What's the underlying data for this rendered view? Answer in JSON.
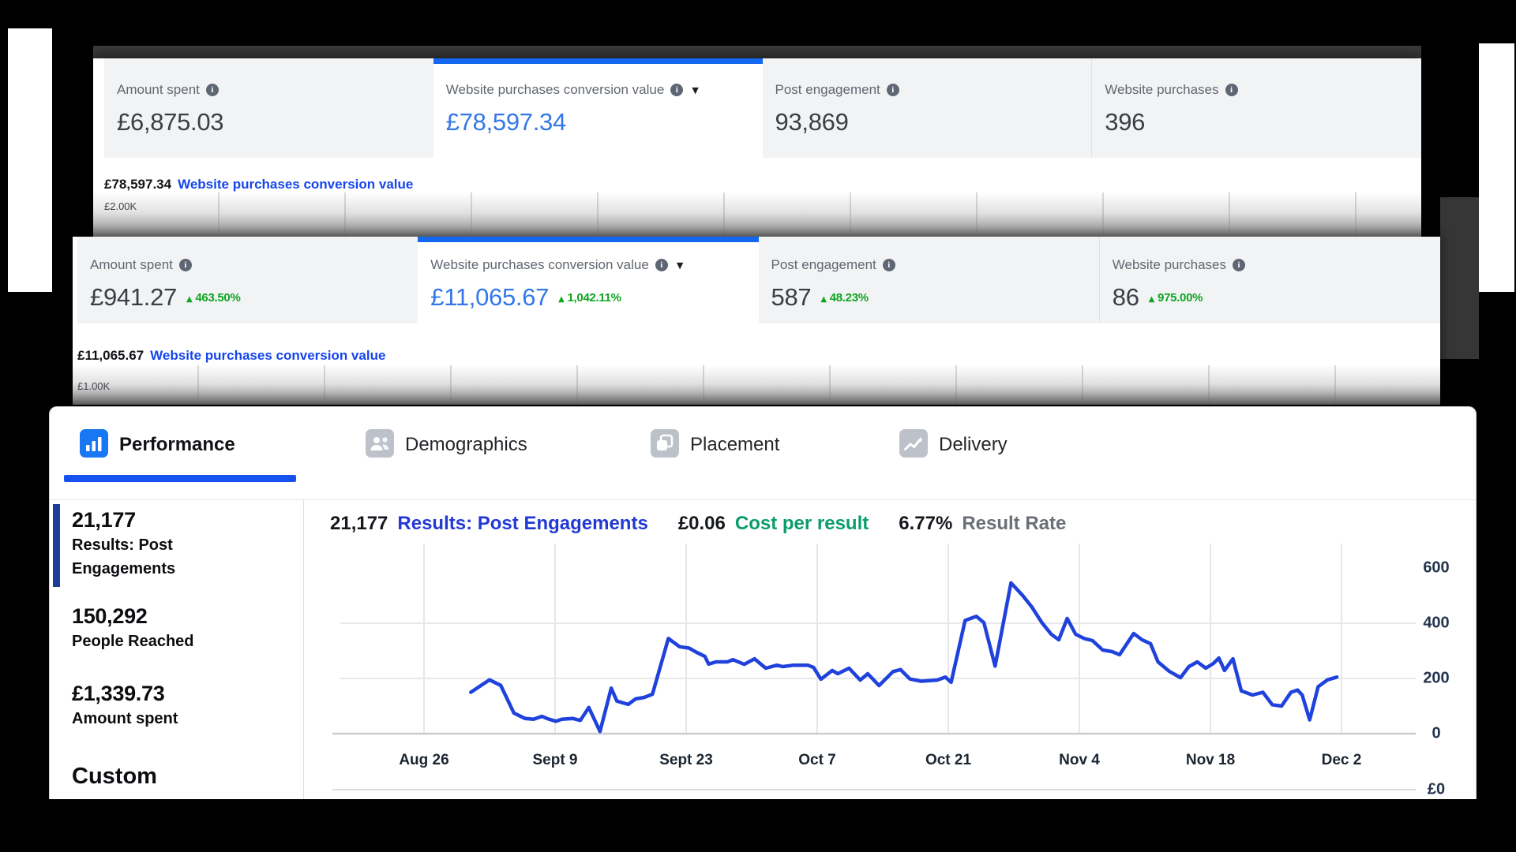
{
  "colors": {
    "accent_blue_bar": "#1467f0",
    "value_blue": "#3377e8",
    "link_blue": "#1545ec",
    "results_blue": "#2239d4",
    "line_blue": "#1f41dc",
    "tab_underline_blue": "#1652f0",
    "positive_green": "#0da521",
    "cost_teal": "#0a9d6c",
    "sidebar_accent_navy": "#1c3e96"
  },
  "panels": [
    {
      "name": "metrics-panel-1",
      "cards": [
        {
          "label": "Amount spent",
          "value": "£6,875.03",
          "info": true
        },
        {
          "label": "Website purchases conversion value",
          "value": "£78,597.34",
          "info": true,
          "dropdown": true,
          "selected": true
        },
        {
          "label": "Post engagement",
          "value": "93,869",
          "info": true
        },
        {
          "label": "Website purchases",
          "value": "396",
          "info": true
        }
      ],
      "summary_value": "£78,597.34",
      "summary_label": "Website purchases conversion value",
      "axis_label": "£2.00K"
    },
    {
      "name": "metrics-panel-2",
      "cards": [
        {
          "label": "Amount spent",
          "value": "£941.27",
          "delta": "463.50%",
          "info": true
        },
        {
          "label": "Website purchases conversion value",
          "value": "£11,065.67",
          "delta": "1,042.11%",
          "info": true,
          "dropdown": true,
          "selected": true
        },
        {
          "label": "Post engagement",
          "value": "587",
          "delta": "48.23%",
          "info": true
        },
        {
          "label": "Website purchases",
          "value": "86",
          "delta": "975.00%",
          "info": true
        }
      ],
      "summary_value": "£11,065.67",
      "summary_label": "Website purchases conversion value",
      "axis_label": "£1.00K"
    }
  ],
  "performance_panel": {
    "tabs": [
      {
        "label": "Performance",
        "icon": "bar-chart-icon",
        "active": true
      },
      {
        "label": "Demographics",
        "icon": "people-icon",
        "active": false
      },
      {
        "label": "Placement",
        "icon": "placement-icon",
        "active": false
      },
      {
        "label": "Delivery",
        "icon": "trend-icon",
        "active": false
      }
    ],
    "sidebar": [
      {
        "value": "21,177",
        "label_lines": [
          "Results: Post",
          "Engagements"
        ],
        "highlighted": true
      },
      {
        "value": "150,292",
        "label_lines": [
          "People Reached"
        ],
        "highlighted": false
      },
      {
        "value": "£1,339.73",
        "label_lines": [
          "Amount spent"
        ],
        "highlighted": false
      }
    ],
    "sidebar_footer": "Custom",
    "header": {
      "results_value": "21,177",
      "results_label": "Results: Post Engagements",
      "cost_value": "£0.06",
      "cost_label": "Cost per result",
      "rate_value": "6.77%",
      "rate_label": "Result Rate"
    }
  },
  "chart_data": {
    "type": "line",
    "title": "Results: Post Engagements over time",
    "x_tick_labels": [
      "Aug 26",
      "Sept 9",
      "Sept 23",
      "Oct 7",
      "Oct 21",
      "Nov 4",
      "Nov 18",
      "Dec 2"
    ],
    "x_tick_days": [
      0,
      14,
      28,
      42,
      56,
      70,
      84,
      98
    ],
    "y_ticks": [
      0,
      200,
      400,
      600
    ],
    "y_gridline_values": [
      400,
      200,
      0
    ],
    "y_axis_extra_label": "£0",
    "ylim": [
      0,
      650
    ],
    "grid": true,
    "legend": "none",
    "series": [
      {
        "name": "Results: Post Engagements",
        "points": [
          [
            5,
            150
          ],
          [
            7,
            195
          ],
          [
            8.2,
            175
          ],
          [
            9.6,
            75
          ],
          [
            10.8,
            55
          ],
          [
            11.7,
            52
          ],
          [
            12.6,
            63
          ],
          [
            13.2,
            54
          ],
          [
            14.1,
            45
          ],
          [
            14.7,
            52
          ],
          [
            15.9,
            55
          ],
          [
            16.7,
            48
          ],
          [
            17.6,
            95
          ],
          [
            18.8,
            8
          ],
          [
            20,
            165
          ],
          [
            20.6,
            118
          ],
          [
            21.8,
            106
          ],
          [
            22.6,
            126
          ],
          [
            23.5,
            131
          ],
          [
            24.4,
            143
          ],
          [
            26.1,
            345
          ],
          [
            27.3,
            315
          ],
          [
            28.3,
            310
          ],
          [
            29.1,
            295
          ],
          [
            30,
            280
          ],
          [
            30.4,
            252
          ],
          [
            31.2,
            260
          ],
          [
            32.4,
            260
          ],
          [
            33,
            268
          ],
          [
            34.2,
            251
          ],
          [
            35.3,
            271
          ],
          [
            36.5,
            237
          ],
          [
            37.7,
            248
          ],
          [
            38.3,
            243
          ],
          [
            39.5,
            248
          ],
          [
            41,
            248
          ],
          [
            41.6,
            240
          ],
          [
            42.4,
            197
          ],
          [
            43.6,
            229
          ],
          [
            44.2,
            217
          ],
          [
            45.4,
            237
          ],
          [
            46.6,
            194
          ],
          [
            47.4,
            217
          ],
          [
            48.6,
            174
          ],
          [
            50.1,
            225
          ],
          [
            50.9,
            232
          ],
          [
            51.9,
            198
          ],
          [
            53.1,
            190
          ],
          [
            54.8,
            194
          ],
          [
            55.7,
            205
          ],
          [
            56.3,
            186
          ],
          [
            57.8,
            410
          ],
          [
            59,
            425
          ],
          [
            59.8,
            402
          ],
          [
            61,
            245
          ],
          [
            62.7,
            546
          ],
          [
            63.9,
            502
          ],
          [
            64.9,
            460
          ],
          [
            66,
            402
          ],
          [
            67,
            360
          ],
          [
            67.8,
            340
          ],
          [
            68.7,
            417
          ],
          [
            69.6,
            360
          ],
          [
            70.5,
            345
          ],
          [
            71.4,
            337
          ],
          [
            72.5,
            303
          ],
          [
            73.5,
            297
          ],
          [
            74.3,
            286
          ],
          [
            75.8,
            363
          ],
          [
            76.7,
            340
          ],
          [
            77.6,
            326
          ],
          [
            78.4,
            260
          ],
          [
            79.6,
            226
          ],
          [
            80.8,
            203
          ],
          [
            81.7,
            243
          ],
          [
            82.6,
            260
          ],
          [
            83.5,
            237
          ],
          [
            84.3,
            254
          ],
          [
            84.9,
            274
          ],
          [
            85.5,
            229
          ],
          [
            86.4,
            271
          ],
          [
            87.3,
            155
          ],
          [
            88.5,
            140
          ],
          [
            89.6,
            150
          ],
          [
            90.6,
            105
          ],
          [
            91.6,
            100
          ],
          [
            92.6,
            150
          ],
          [
            93.3,
            158
          ],
          [
            93.8,
            140
          ],
          [
            94.6,
            50
          ],
          [
            95.5,
            170
          ],
          [
            96.5,
            195
          ],
          [
            97.5,
            205
          ]
        ]
      }
    ]
  }
}
